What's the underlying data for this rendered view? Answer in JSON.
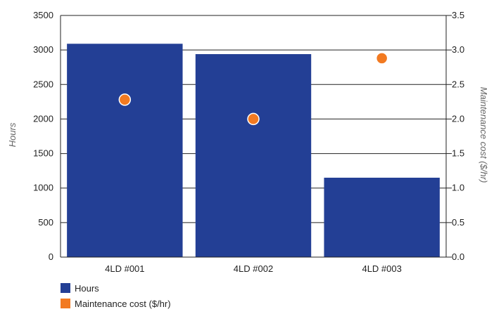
{
  "chart_data": {
    "type": "bar",
    "categories": [
      "4LD #001",
      "4LD #002",
      "4LD #003"
    ],
    "series": [
      {
        "name": "Hours",
        "kind": "bar",
        "axis": "left",
        "color": "#233f95",
        "values": [
          3090,
          2940,
          1150
        ]
      },
      {
        "name": "Maintenance cost ($/hr)",
        "kind": "scatter",
        "axis": "right",
        "color": "#f27a21",
        "values": [
          2.28,
          2.0,
          2.88
        ]
      }
    ],
    "ylabel": "Hours",
    "y2label": "Maintenance cost ($/hr)",
    "ylim": [
      0,
      3500
    ],
    "y2lim": [
      0,
      3.5
    ],
    "yticks": [
      "0",
      "500",
      "1000",
      "1500",
      "2000",
      "2500",
      "3000",
      "3500"
    ],
    "y2ticks": [
      "0.0",
      "0.5",
      "1.0",
      "1.5",
      "2.0",
      "2.5",
      "3.0",
      "3.5"
    ],
    "grid": true,
    "legend": "bottom-left"
  }
}
